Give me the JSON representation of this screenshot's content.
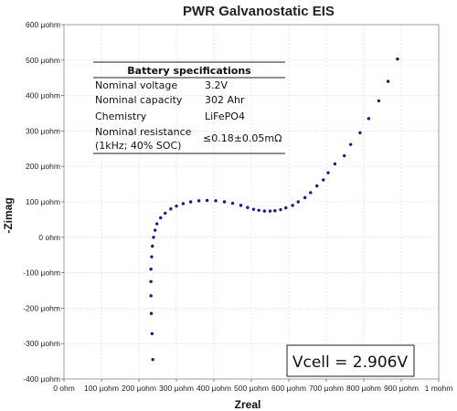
{
  "chart_data": {
    "type": "scatter",
    "title": "PWR Galvanostatic EIS",
    "xlabel": "Zreal",
    "ylabel": "-Zimag",
    "xlim": [
      0,
      1000
    ],
    "ylim": [
      -400,
      600
    ],
    "x_ticks": [
      "0 ohm",
      "100 µohm",
      "200 µohm",
      "300 µohm",
      "400 µohm",
      "500 µohm",
      "600 µohm",
      "700 µohm",
      "800 µohm",
      "900 µohm",
      "1 mohm"
    ],
    "y_ticks": [
      "-400 µohm",
      "-300 µohm",
      "-200 µohm",
      "-100 µohm",
      "0 ohm",
      "100 µohm",
      "200 µohm",
      "300 µohm",
      "400 µohm",
      "500 µohm",
      "600 µohm"
    ],
    "grid": true,
    "series": [
      {
        "color": "#1a1a8c",
        "points": [
          [
            237,
            -345
          ],
          [
            235,
            -272
          ],
          [
            233,
            -215
          ],
          [
            232,
            -165
          ],
          [
            232,
            -125
          ],
          [
            232,
            -90
          ],
          [
            234,
            -55
          ],
          [
            236,
            -25
          ],
          [
            239,
            0
          ],
          [
            243,
            20
          ],
          [
            248,
            38
          ],
          [
            258,
            55
          ],
          [
            270,
            68
          ],
          [
            285,
            80
          ],
          [
            300,
            88
          ],
          [
            318,
            95
          ],
          [
            338,
            100
          ],
          [
            360,
            103
          ],
          [
            382,
            104
          ],
          [
            405,
            103
          ],
          [
            428,
            100
          ],
          [
            450,
            96
          ],
          [
            472,
            90
          ],
          [
            490,
            84
          ],
          [
            506,
            79
          ],
          [
            520,
            76
          ],
          [
            535,
            74
          ],
          [
            550,
            74
          ],
          [
            563,
            75
          ],
          [
            578,
            78
          ],
          [
            592,
            83
          ],
          [
            610,
            90
          ],
          [
            625,
            100
          ],
          [
            643,
            112
          ],
          [
            658,
            126
          ],
          [
            675,
            145
          ],
          [
            692,
            162
          ],
          [
            705,
            182
          ],
          [
            723,
            207
          ],
          [
            748,
            230
          ],
          [
            765,
            262
          ],
          [
            790,
            295
          ],
          [
            813,
            335
          ],
          [
            840,
            385
          ],
          [
            865,
            440
          ],
          [
            890,
            503
          ]
        ]
      }
    ],
    "annotations": {
      "specs_title": "Battery specifications",
      "specs": [
        {
          "label": "Nominal voltage",
          "value": "3.2V"
        },
        {
          "label": "Nominal capacity",
          "value": "302 Ahr"
        },
        {
          "label": "Chemistry",
          "value": "LiFePO4"
        },
        {
          "label": "Nominal resistance",
          "label2": "(1kHz; 40% SOC)",
          "value": "≤0.18±0.05mΩ"
        }
      ],
      "vcell": "Vcell = 2.906V"
    }
  }
}
